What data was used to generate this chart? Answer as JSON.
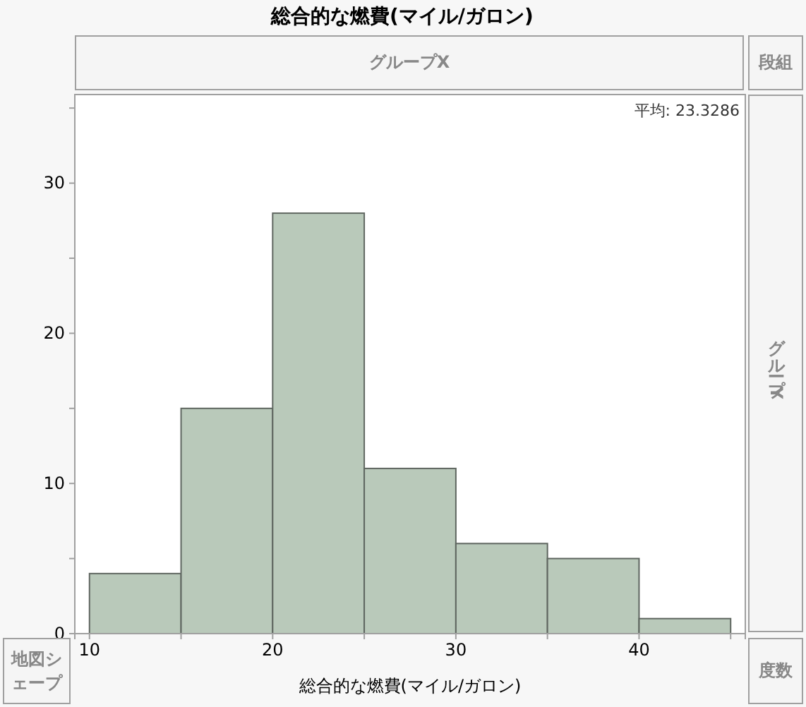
{
  "chart_data": {
    "type": "histogram",
    "title": "総合的な燃費(マイル/ガロン)",
    "xlabel": "総合的な燃費(マイル/ガロン)",
    "bins": [
      10,
      15,
      20,
      25,
      30,
      35,
      40,
      45
    ],
    "values": [
      4,
      15,
      28,
      11,
      6,
      5,
      1
    ],
    "color": "#b9c9ba",
    "xlim": [
      9.2,
      45.8
    ],
    "xticks": [
      10,
      {
        "value": 15,
        "label": null
      },
      20,
      {
        "value": 25,
        "label": null
      },
      30,
      {
        "value": 35,
        "label": null
      },
      40,
      {
        "value": 45,
        "label": null
      }
    ],
    "ylim": [
      0,
      35.9
    ],
    "yticks": [
      0,
      {
        "value": 5,
        "label": null
      },
      10,
      {
        "value": 15,
        "label": null
      },
      20,
      {
        "value": 25,
        "label": null
      },
      30,
      {
        "value": 35,
        "label": null
      }
    ],
    "grid": false,
    "annotations": [
      "グループX",
      "段組",
      "平均: 23.3286",
      "グループY",
      "地図シェープ",
      "度数"
    ]
  }
}
